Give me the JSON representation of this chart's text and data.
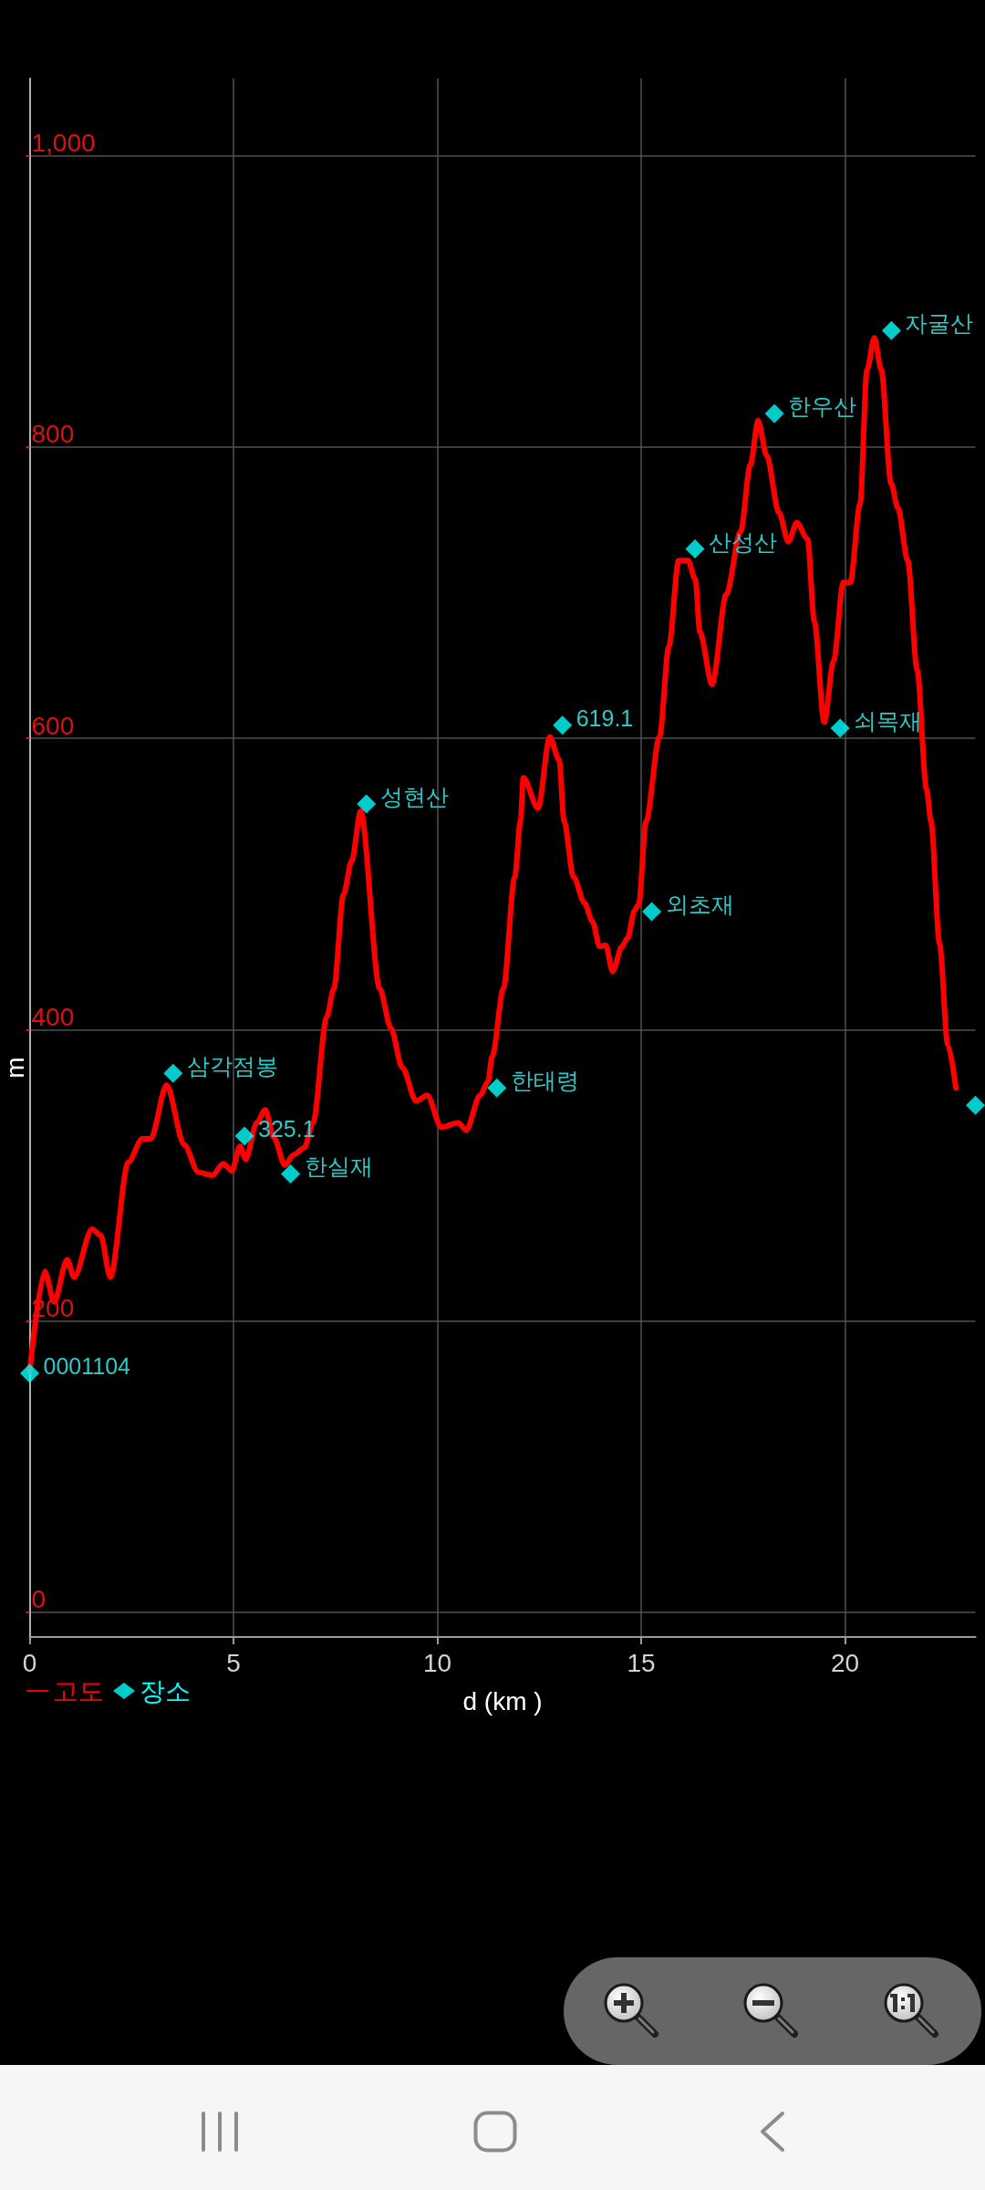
{
  "chart_data": {
    "type": "line",
    "xlabel": "d (km )",
    "ylabel": "m",
    "xlim": [
      0,
      23.2
    ],
    "xticks": [
      0,
      5,
      10,
      15,
      20
    ],
    "ylim": [
      -17,
      1053
    ],
    "yticks": [
      0,
      200,
      400,
      600,
      800,
      {
        "value": 1000,
        "label": "1,000"
      }
    ],
    "grid": true,
    "legend": "bottom left",
    "series": [
      {
        "name": "고도",
        "color": "#ff0000",
        "x": [
          0,
          0.37,
          0.6,
          0.92,
          1.09,
          1.53,
          1.74,
          1.98,
          2.42,
          2.76,
          2.97,
          3.36,
          3.79,
          4.14,
          4.48,
          4.75,
          4.96,
          5.16,
          5.3,
          5.57,
          5.78,
          5.99,
          6.26,
          6.47,
          6.74,
          6.95,
          7.29,
          7.46,
          7.7,
          7.9,
          8.12,
          8.59,
          8.86,
          9.14,
          9.48,
          9.75,
          10.1,
          10.51,
          10.71,
          11.05,
          11.24,
          11.35,
          11.62,
          11.9,
          12.04,
          12.11,
          12.47,
          12.76,
          12.99,
          13.11,
          13.34,
          13.61,
          13.81,
          13.98,
          14.13,
          14.3,
          14.53,
          14.67,
          14.84,
          14.94,
          15.12,
          15.45,
          15.68,
          15.92,
          16.15,
          16.33,
          16.44,
          16.74,
          17.09,
          17.44,
          17.68,
          17.87,
          18.08,
          18.38,
          18.61,
          18.82,
          19.08,
          19.25,
          19.49,
          19.72,
          19.96,
          20.13,
          20.37,
          20.54,
          20.72,
          20.89,
          21.13,
          21.3,
          21.54,
          21.77,
          22.0,
          22.11,
          22.32,
          22.52,
          22.72
        ],
        "values": [
          165,
          234,
          213,
          242,
          230,
          263,
          259,
          230,
          309,
          325,
          325,
          362,
          321,
          302,
          300,
          308,
          303,
          320,
          311,
          336,
          345,
          326,
          307,
          314,
          319,
          336,
          409,
          428,
          493,
          516,
          550,
          428,
          401,
          374,
          351,
          355,
          333,
          336,
          331,
          355,
          364,
          382,
          428,
          505,
          543,
          573,
          552,
          601,
          585,
          543,
          505,
          487,
          474,
          457,
          458,
          440,
          457,
          463,
          482,
          486,
          543,
          601,
          663,
          722,
          722,
          709,
          673,
          637,
          699,
          742,
          788,
          818,
          794,
          755,
          735,
          748,
          737,
          680,
          611,
          653,
          707,
          707,
          761,
          853,
          875,
          853,
          775,
          758,
          722,
          647,
          565,
          543,
          459,
          390,
          360
        ]
      },
      {
        "name": "장소",
        "type": "scatter",
        "marker": "diamond",
        "color": "#00ffff",
        "x": [
          0,
          3.52,
          5.27,
          6.4,
          8.26,
          11.46,
          13.07,
          15.26,
          16.32,
          18.27,
          19.88,
          21.14,
          23.2
        ],
        "values": [
          164,
          370,
          327,
          301,
          555,
          360,
          609,
          481,
          730,
          823,
          607,
          880,
          348
        ]
      }
    ],
    "annotations": [
      {
        "text": "0001104",
        "x": 0,
        "y": 164
      },
      {
        "text": "삼각점봉",
        "x": 3.52,
        "y": 370
      },
      {
        "text": "325.1",
        "x": 5.27,
        "y": 327
      },
      {
        "text": "한실재",
        "x": 6.4,
        "y": 301
      },
      {
        "text": "성현산",
        "x": 8.26,
        "y": 555
      },
      {
        "text": "한태령",
        "x": 11.46,
        "y": 360
      },
      {
        "text": "619.1",
        "x": 13.07,
        "y": 609
      },
      {
        "text": "외초재",
        "x": 15.26,
        "y": 481
      },
      {
        "text": "산성산",
        "x": 16.32,
        "y": 730
      },
      {
        "text": "한우산",
        "x": 18.27,
        "y": 823
      },
      {
        "text": "쇠목재",
        "x": 19.88,
        "y": 607
      },
      {
        "text": "자굴산",
        "x": 21.14,
        "y": 880
      }
    ]
  }
}
